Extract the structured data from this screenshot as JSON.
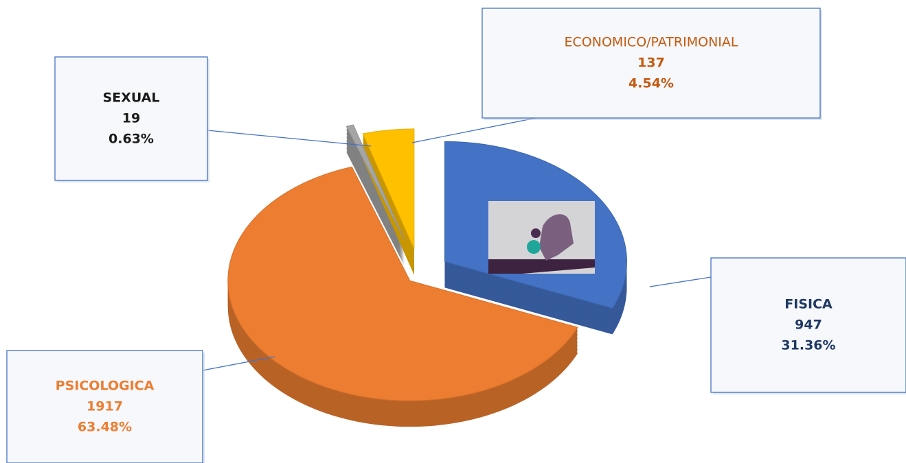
{
  "chart_data": {
    "type": "pie",
    "categories": [
      "FISICA",
      "PSICOLOGICA",
      "SEXUAL",
      "ECONOMICO/PATRIMONIAL"
    ],
    "values": [
      947,
      1917,
      19,
      137
    ],
    "percentages": [
      {
        "value": 31.36,
        "label": "31.36%"
      },
      {
        "value": 63.48,
        "label": "63.48%"
      },
      {
        "value": 0.63,
        "label": "0.63%"
      },
      {
        "value": 4.54,
        "label": "4.54%"
      }
    ],
    "colors": [
      "#4472c4",
      "#ed7d31",
      "#a5a5a5",
      "#ffc000"
    ],
    "label_colors": [
      "#1f3864",
      "#ed7d31",
      "#1a1a1a",
      "#c55a11"
    ]
  }
}
